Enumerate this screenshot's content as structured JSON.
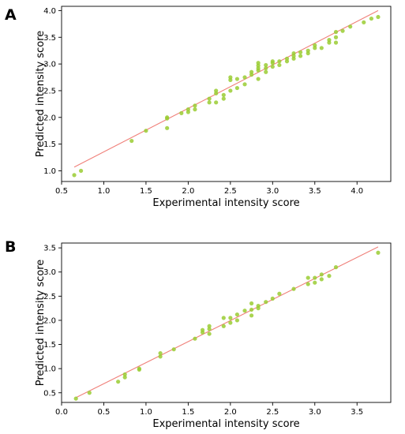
{
  "panel_labels": [
    "A",
    "B"
  ],
  "colors": {
    "points": "#9ACD32",
    "fit_line": "#F0807A",
    "axes": "#000000"
  },
  "chart_data": [
    {
      "type": "scatter",
      "panel": "A",
      "xlabel": "Experimental intensity score",
      "ylabel": "Predicted intensity score",
      "xlim": [
        0.5,
        4.4
      ],
      "ylim": [
        0.8,
        4.08
      ],
      "xticks": [
        "0.5",
        "1.0",
        "1.5",
        "2.0",
        "2.5",
        "3.0",
        "3.5",
        "4.0"
      ],
      "yticks": [
        "1.0",
        "1.5",
        "2.0",
        "2.5",
        "3.0",
        "3.5",
        "4.0"
      ],
      "fit_line": {
        "x": [
          0.65,
          4.25
        ],
        "y": [
          1.07,
          4.0
        ]
      },
      "points": [
        [
          0.65,
          0.92
        ],
        [
          0.73,
          1.0
        ],
        [
          1.33,
          1.56
        ],
        [
          1.5,
          1.75
        ],
        [
          1.75,
          1.8
        ],
        [
          1.75,
          1.98
        ],
        [
          1.75,
          2.0
        ],
        [
          1.92,
          2.08
        ],
        [
          2.0,
          2.1
        ],
        [
          2.0,
          2.15
        ],
        [
          2.08,
          2.15
        ],
        [
          2.08,
          2.22
        ],
        [
          2.25,
          2.28
        ],
        [
          2.25,
          2.35
        ],
        [
          2.33,
          2.28
        ],
        [
          2.33,
          2.45
        ],
        [
          2.33,
          2.5
        ],
        [
          2.42,
          2.35
        ],
        [
          2.42,
          2.42
        ],
        [
          2.5,
          2.5
        ],
        [
          2.5,
          2.7
        ],
        [
          2.5,
          2.75
        ],
        [
          2.58,
          2.55
        ],
        [
          2.58,
          2.72
        ],
        [
          2.67,
          2.62
        ],
        [
          2.67,
          2.75
        ],
        [
          2.75,
          2.8
        ],
        [
          2.75,
          2.85
        ],
        [
          2.83,
          2.72
        ],
        [
          2.83,
          2.88
        ],
        [
          2.83,
          2.92
        ],
        [
          2.83,
          2.97
        ],
        [
          2.83,
          3.02
        ],
        [
          2.92,
          2.85
        ],
        [
          2.92,
          2.92
        ],
        [
          2.92,
          2.98
        ],
        [
          3.0,
          2.95
        ],
        [
          3.0,
          3.02
        ],
        [
          3.0,
          3.05
        ],
        [
          3.08,
          2.98
        ],
        [
          3.08,
          3.05
        ],
        [
          3.17,
          3.05
        ],
        [
          3.17,
          3.1
        ],
        [
          3.25,
          3.1
        ],
        [
          3.25,
          3.15
        ],
        [
          3.25,
          3.2
        ],
        [
          3.33,
          3.15
        ],
        [
          3.33,
          3.22
        ],
        [
          3.42,
          3.2
        ],
        [
          3.42,
          3.25
        ],
        [
          3.5,
          3.3
        ],
        [
          3.5,
          3.35
        ],
        [
          3.58,
          3.3
        ],
        [
          3.67,
          3.4
        ],
        [
          3.67,
          3.45
        ],
        [
          3.75,
          3.4
        ],
        [
          3.75,
          3.5
        ],
        [
          3.75,
          3.6
        ],
        [
          3.83,
          3.62
        ],
        [
          3.92,
          3.7
        ],
        [
          4.08,
          3.78
        ],
        [
          4.17,
          3.85
        ],
        [
          4.25,
          3.88
        ]
      ]
    },
    {
      "type": "scatter",
      "panel": "B",
      "xlabel": "Experimental intensity score",
      "ylabel": "Predicted intensity score",
      "xlim": [
        0.0,
        3.9
      ],
      "ylim": [
        0.3,
        3.6
      ],
      "xticks": [
        "0.0",
        "0.5",
        "1.0",
        "1.5",
        "2.0",
        "2.5",
        "3.0",
        "3.5"
      ],
      "yticks": [
        "0.5",
        "1.0",
        "1.5",
        "2.0",
        "2.5",
        "3.0",
        "3.5"
      ],
      "fit_line": {
        "x": [
          0.17,
          3.75
        ],
        "y": [
          0.4,
          3.52
        ]
      },
      "points": [
        [
          0.17,
          0.38
        ],
        [
          0.33,
          0.5
        ],
        [
          0.67,
          0.73
        ],
        [
          0.75,
          0.82
        ],
        [
          0.75,
          0.88
        ],
        [
          0.92,
          0.98
        ],
        [
          0.92,
          1.0
        ],
        [
          1.17,
          1.25
        ],
        [
          1.17,
          1.32
        ],
        [
          1.33,
          1.4
        ],
        [
          1.58,
          1.62
        ],
        [
          1.67,
          1.75
        ],
        [
          1.67,
          1.8
        ],
        [
          1.75,
          1.72
        ],
        [
          1.75,
          1.82
        ],
        [
          1.75,
          1.88
        ],
        [
          1.92,
          1.88
        ],
        [
          1.92,
          2.05
        ],
        [
          2.0,
          1.95
        ],
        [
          2.0,
          2.05
        ],
        [
          2.08,
          2.0
        ],
        [
          2.08,
          2.12
        ],
        [
          2.17,
          2.2
        ],
        [
          2.25,
          2.1
        ],
        [
          2.25,
          2.22
        ],
        [
          2.25,
          2.35
        ],
        [
          2.33,
          2.25
        ],
        [
          2.33,
          2.3
        ],
        [
          2.42,
          2.38
        ],
        [
          2.5,
          2.45
        ],
        [
          2.58,
          2.55
        ],
        [
          2.75,
          2.65
        ],
        [
          2.92,
          2.75
        ],
        [
          2.92,
          2.88
        ],
        [
          3.0,
          2.78
        ],
        [
          3.0,
          2.88
        ],
        [
          3.08,
          2.85
        ],
        [
          3.08,
          2.95
        ],
        [
          3.17,
          2.92
        ],
        [
          3.25,
          3.1
        ],
        [
          3.75,
          3.4
        ]
      ]
    }
  ]
}
